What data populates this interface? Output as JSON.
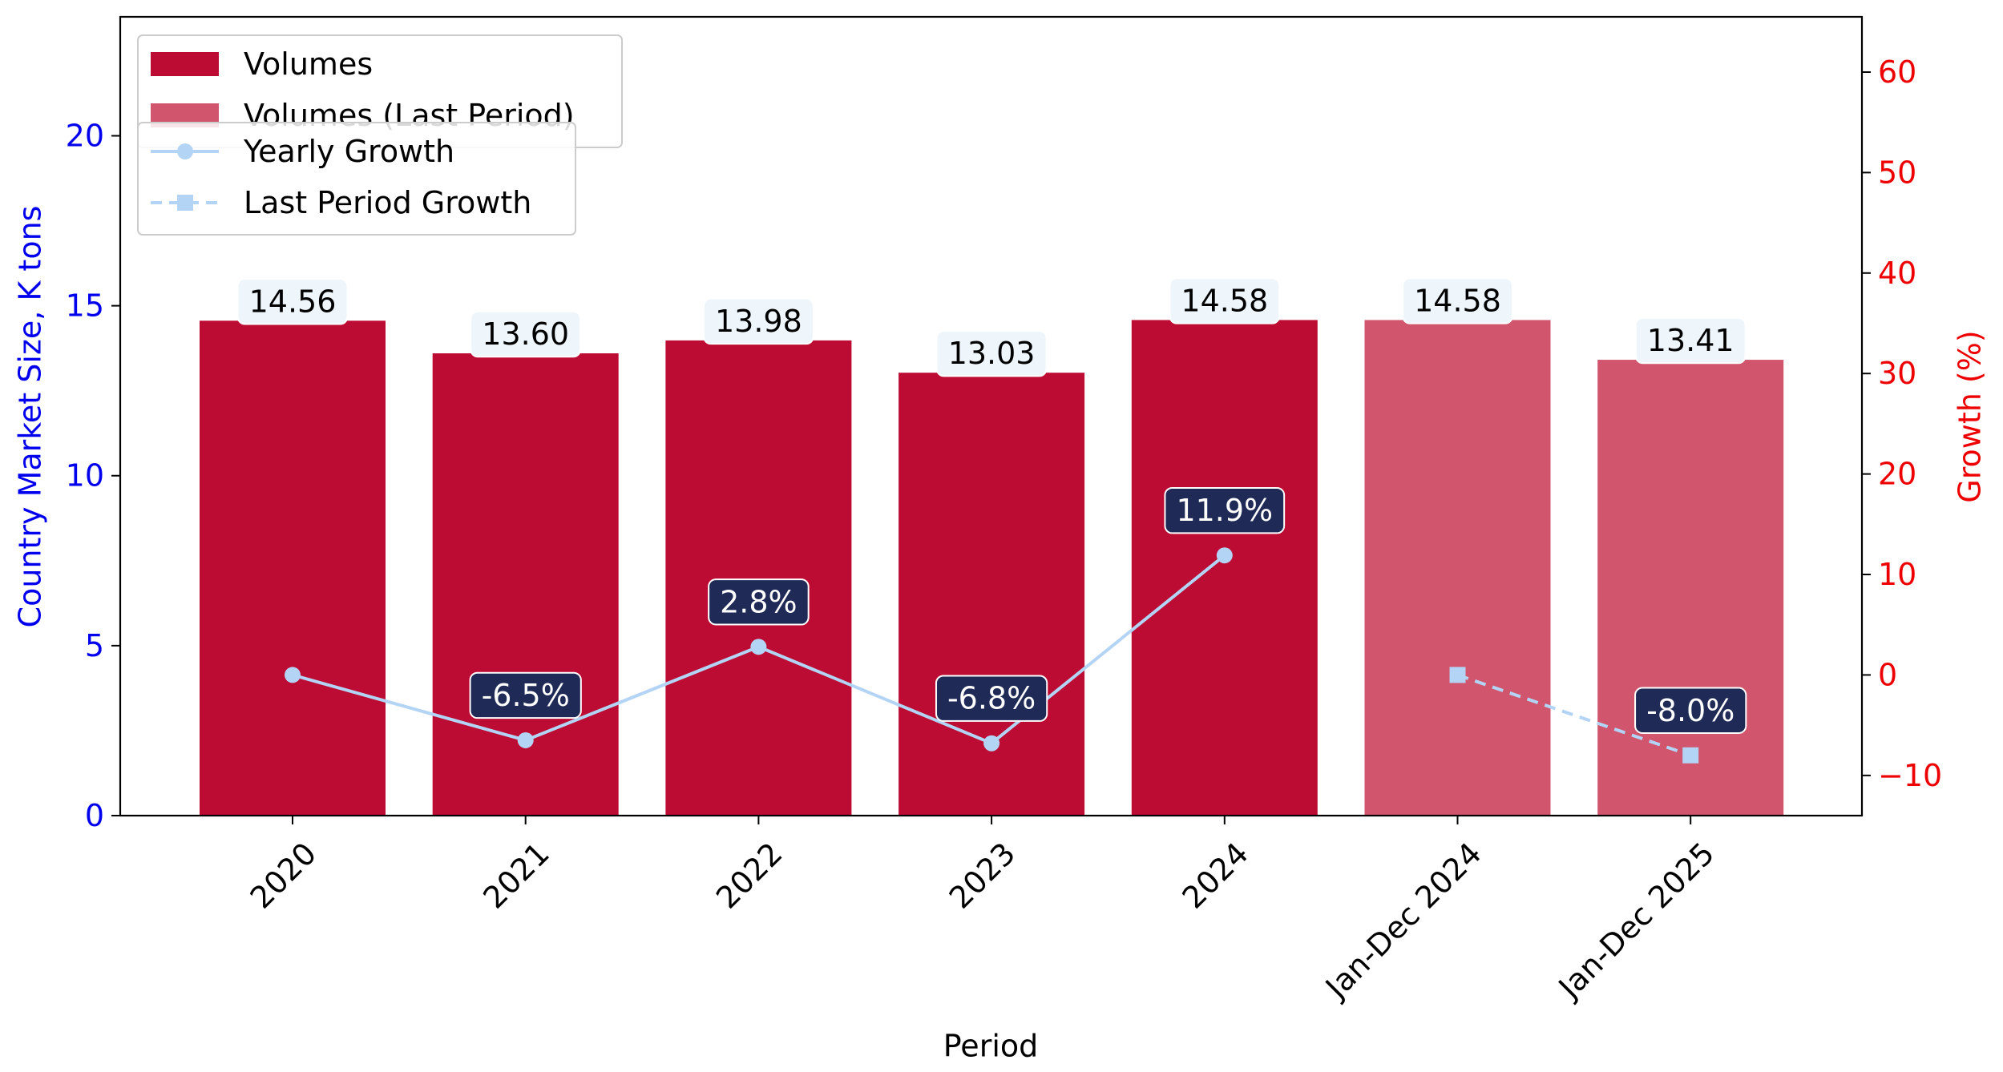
{
  "chart_data": {
    "type": "bar",
    "categories": [
      "2020",
      "2021",
      "2022",
      "2023",
      "2024",
      "Jan-Dec 2024",
      "Jan-Dec 2025"
    ],
    "xlabel": "Period",
    "ylabel": "Country Market Size, K tons",
    "y2label": "Growth (%)",
    "ylim": [
      0,
      23.5
    ],
    "y2lim": [
      -14.0,
      65.5
    ],
    "yticks": [
      0,
      5,
      10,
      15,
      20
    ],
    "y2ticks": [
      -10,
      0,
      10,
      20,
      30,
      40,
      50,
      60
    ],
    "grid": false,
    "series": [
      {
        "name": "Volumes",
        "axis": "left",
        "color": "#BC0C33",
        "values": [
          14.56,
          13.6,
          13.98,
          13.03,
          14.58,
          null,
          null
        ],
        "labels": [
          "14.56",
          "13.60",
          "13.98",
          "13.03",
          "14.58",
          "",
          ""
        ]
      },
      {
        "name": "Volumes (Last Period)",
        "axis": "left",
        "color": "#D0556D",
        "values": [
          null,
          null,
          null,
          null,
          null,
          14.58,
          13.41
        ],
        "labels": [
          "",
          "",
          "",
          "",
          "",
          "14.58",
          "13.41"
        ]
      },
      {
        "name": "Yearly Growth",
        "axis": "right",
        "type": "line",
        "marker": "circle",
        "linestyle": "solid",
        "color": "#B3D4F5",
        "values": [
          0,
          -6.5,
          2.8,
          -6.8,
          11.9,
          null,
          null
        ],
        "labels": [
          "",
          "-6.5%",
          "2.8%",
          "-6.8%",
          "11.9%",
          "",
          ""
        ]
      },
      {
        "name": "Last Period Growth",
        "axis": "right",
        "type": "line",
        "marker": "square",
        "linestyle": "dashed",
        "color": "#B3D4F5",
        "values": [
          null,
          null,
          null,
          null,
          null,
          0,
          -8.0
        ],
        "labels": [
          "",
          "",
          "",
          "",
          "",
          "",
          "-8.0%"
        ]
      }
    ],
    "legend": [
      {
        "placement": "top-left",
        "entries": [
          "Volumes",
          "Volumes (Last Period)"
        ]
      },
      {
        "placement": "top-left",
        "entries": [
          "Yearly Growth",
          "Last Period Growth"
        ]
      }
    ],
    "colors": {
      "left_axis": "#0000EE",
      "right_axis": "#EE0000",
      "bar_label_bg": "#EEF5FB",
      "growth_label_bg": "#1F2A56",
      "growth_label_text": "#FFFFFF"
    }
  }
}
